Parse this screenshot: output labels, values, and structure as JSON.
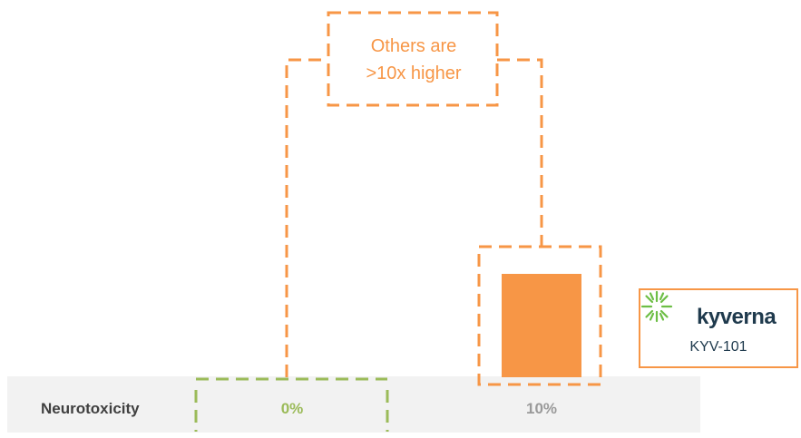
{
  "chart_data": {
    "type": "bar",
    "categories": [
      "Neurotoxicity"
    ],
    "series": [
      {
        "name": "",
        "values": [
          0
        ],
        "label": "0%",
        "color": "#9BBB59"
      },
      {
        "name": "KYV-101",
        "values": [
          10
        ],
        "label": "10%",
        "color": "#F79646"
      }
    ],
    "ylim": [
      0,
      12
    ],
    "grid": false
  },
  "row_label": "Neurotoxicity",
  "callout": {
    "line1": "Others are",
    "line2": ">10x higher"
  },
  "brand": {
    "name": "kyverna",
    "product": "KYV-101"
  },
  "colors": {
    "orange": "#F79646",
    "green": "#9BBB59",
    "gray_text": "#9a9a9a",
    "row_bg": "#F2F2F2"
  }
}
